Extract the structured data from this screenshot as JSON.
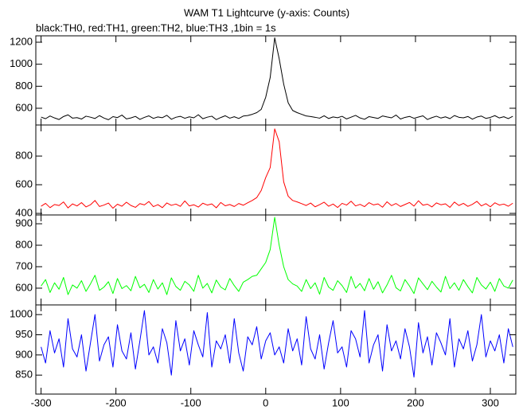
{
  "chart_data": {
    "type": "line",
    "title": "WAM T1 Lightcurve (y-axis: Counts)",
    "subtitle": "black:TH0, red:TH1, green:TH2, blue:TH3 ,1bin = 1s",
    "x": [
      -300,
      -294,
      -288,
      -282,
      -276,
      -270,
      -264,
      -258,
      -252,
      -246,
      -240,
      -234,
      -228,
      -222,
      -216,
      -210,
      -204,
      -198,
      -192,
      -186,
      -180,
      -174,
      -168,
      -162,
      -156,
      -150,
      -144,
      -138,
      -132,
      -126,
      -120,
      -114,
      -108,
      -102,
      -96,
      -90,
      -84,
      -78,
      -72,
      -66,
      -60,
      -54,
      -48,
      -42,
      -36,
      -30,
      -24,
      -18,
      -12,
      -6,
      0,
      6,
      12,
      18,
      24,
      30,
      36,
      42,
      48,
      54,
      60,
      66,
      72,
      78,
      84,
      90,
      96,
      102,
      108,
      114,
      120,
      126,
      132,
      138,
      144,
      150,
      156,
      162,
      168,
      174,
      180,
      186,
      192,
      198,
      204,
      210,
      216,
      222,
      228,
      234,
      240,
      246,
      252,
      258,
      264,
      270,
      276,
      282,
      288,
      294,
      300,
      306,
      312,
      318,
      324,
      330
    ],
    "xlim": [
      -307,
      334
    ],
    "xticks": [
      -300,
      -200,
      -100,
      0,
      100,
      200,
      300
    ],
    "panels": [
      {
        "ylim": [
          448,
          1258
        ],
        "yticks": [
          600,
          800,
          1000,
          1200
        ],
        "series": [
          {
            "color": "#000000",
            "values": [
              520,
              505,
              530,
              512,
              498,
              525,
              540,
              510,
              515,
              502,
              528,
              519,
              507,
              533,
              511,
              496,
              524,
              515,
              538,
              503,
              512,
              526,
              499,
              517,
              531,
              508,
              521,
              514,
              536,
              500,
              518,
              527,
              509,
              522,
              513,
              541,
              505,
              519,
              528,
              497,
              516,
              532,
              510,
              523,
              507,
              529,
              534,
              545,
              560,
              590,
              700,
              880,
              1240,
              1050,
              820,
              650,
              580,
              560,
              545,
              530,
              525,
              518,
              510,
              532,
              507,
              521,
              514,
              527,
              503,
              519,
              535,
              512,
              500,
              524,
              516,
              508,
              530,
              521,
              513,
              538,
              502,
              517,
              526,
              509,
              520,
              531,
              498,
              515,
              528,
              511,
              522,
              506,
              534,
              518,
              513,
              525,
              501,
              520,
              529,
              508,
              517,
              533,
              512,
              523,
              506,
              527
            ]
          }
        ]
      },
      {
        "ylim": [
          389,
          1017
        ],
        "yticks": [
          400,
          600,
          800
        ],
        "series": [
          {
            "color": "#ff0000",
            "values": [
              450,
              470,
              440,
              462,
              455,
              480,
              438,
              466,
              452,
              475,
              445,
              460,
              490,
              448,
              458,
              472,
              436,
              464,
              450,
              478,
              455,
              442,
              468,
              459,
              483,
              447,
              461,
              440,
              473,
              456,
              465,
              449,
              487,
              452,
              460,
              444,
              471,
              458,
              466,
              439,
              476,
              453,
              462,
              448,
              469,
              457,
              474,
              490,
              510,
              560,
              650,
              720,
              990,
              900,
              620,
              520,
              490,
              480,
              468,
              455,
              472,
              446,
              461,
              478,
              450,
              465,
              441,
              470,
              458,
              485,
              452,
              463,
              447,
              475,
              459,
              466,
              443,
              481,
              454,
              469,
              448,
              462,
              476,
              451,
              488,
              457,
              464,
              445,
              473,
              460,
              467,
              442,
              479,
              455,
              470,
              449,
              463,
              484,
              452,
              468,
              446,
              474,
              458,
              465,
              450,
              471
            ]
          }
        ]
      },
      {
        "ylim": [
          522,
          941
        ],
        "yticks": [
          600,
          700,
          800,
          900
        ],
        "series": [
          {
            "color": "#00ff00",
            "values": [
              610,
              640,
              580,
              625,
              595,
              650,
              570,
              615,
              600,
              635,
              585,
              620,
              660,
              590,
              605,
              630,
              575,
              645,
              598,
              612,
              588,
              655,
              602,
              618,
              580,
              640,
              596,
              625,
              570,
              648,
              608,
              590,
              632,
              615,
              585,
              660,
              600,
              622,
              578,
              638,
              605,
              592,
              645,
              612,
              585,
              628,
              640,
              655,
              660,
              690,
              720,
              780,
              930,
              800,
              700,
              640,
              620,
              610,
              585,
              640,
              598,
              625,
              572,
              650,
              605,
              590,
              635,
              612,
              580,
              655,
              600,
              622,
              588,
              645,
              595,
              630,
              578,
              615,
              660,
              602,
              587,
              640,
              610,
              575,
              648,
              620,
              593,
              632,
              605,
              582,
              655,
              598,
              625,
              590,
              640,
              607,
              578,
              650,
              615,
              596,
              628,
              585,
              645,
              610,
              600,
              638
            ]
          }
        ]
      },
      {
        "ylim": [
          803,
          1024
        ],
        "yticks": [
          850,
          900,
          950,
          1000
        ],
        "series": [
          {
            "color": "#0000ff",
            "values": [
              920,
              880,
              960,
              905,
              940,
              870,
              990,
              915,
              895,
              950,
              860,
              930,
              1000,
              885,
              925,
              945,
              870,
              975,
              910,
              890,
              955,
              865,
              935,
              1010,
              900,
              920,
              880,
              965,
              930,
              850,
              985,
              910,
              940,
              875,
              960,
              925,
              895,
              1005,
              870,
              935,
              915,
              950,
              880,
              990,
              905,
              860,
              945,
              925,
              970,
              890,
              935,
              955,
              900,
              920,
              880,
              965,
              910,
              940,
              875,
              995,
              915,
              890,
              950,
              865,
              930,
              985,
              905,
              920,
              870,
              960,
              940,
              895,
              1010,
              880,
              925,
              950,
              860,
              975,
              910,
              935,
              890,
              965,
              920,
              845,
              980,
              905,
              945,
              875,
              955,
              930,
              900,
              990,
              870,
              940,
              915,
              960,
              885,
              925,
              1000,
              895,
              935,
              910,
              950,
              880,
              965,
              920
            ]
          }
        ]
      }
    ]
  }
}
